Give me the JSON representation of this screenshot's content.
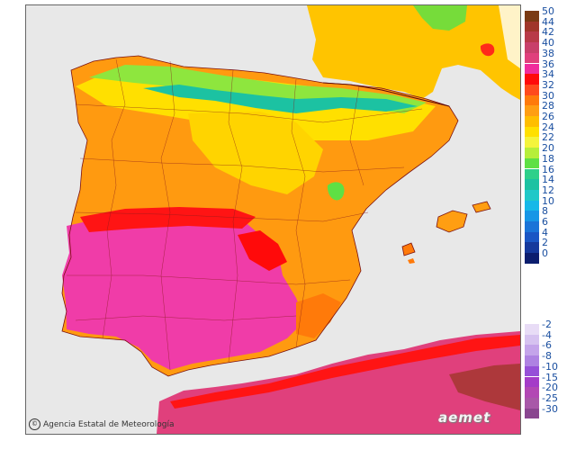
{
  "credit": {
    "icon": "copyright-icon",
    "text": "Agencia Estatal de Meteorología"
  },
  "brand": "aemet",
  "legend": {
    "positive": [
      {
        "label": "50",
        "color": "#7a3a14"
      },
      {
        "label": "44",
        "color": "#a0362a"
      },
      {
        "label": "42",
        "color": "#b83a48"
      },
      {
        "label": "40",
        "color": "#c8406a"
      },
      {
        "label": "38",
        "color": "#e0407c"
      },
      {
        "label": "36",
        "color": "#f02c9c"
      },
      {
        "label": "34",
        "color": "#ff0a0a"
      },
      {
        "label": "32",
        "color": "#ff4a1c"
      },
      {
        "label": "30",
        "color": "#ff7a0a"
      },
      {
        "label": "28",
        "color": "#ff9e12"
      },
      {
        "label": "26",
        "color": "#ffbe00"
      },
      {
        "label": "24",
        "color": "#ffe000"
      },
      {
        "label": "22",
        "color": "#f4f43c"
      },
      {
        "label": "20",
        "color": "#b6ee3a"
      },
      {
        "label": "18",
        "color": "#5ee044"
      },
      {
        "label": "16",
        "color": "#2ed08a"
      },
      {
        "label": "14",
        "color": "#1cc2a2"
      },
      {
        "label": "12",
        "color": "#20c8c8"
      },
      {
        "label": "10",
        "color": "#16b8e8"
      },
      {
        "label": "8",
        "color": "#1696e6"
      },
      {
        "label": "6",
        "color": "#1a74d8"
      },
      {
        "label": "4",
        "color": "#1a56c4"
      },
      {
        "label": "2",
        "color": "#15399c"
      },
      {
        "label": "0",
        "color": "#0c1e6e"
      }
    ],
    "negative": [
      {
        "label": "-2",
        "color": "#e8dcf6"
      },
      {
        "label": "-4",
        "color": "#d6c2f0"
      },
      {
        "label": "-6",
        "color": "#c4a4ea"
      },
      {
        "label": "-8",
        "color": "#ae82e2"
      },
      {
        "label": "-10",
        "color": "#9650d8"
      },
      {
        "label": "-15",
        "color": "#a43cc8"
      },
      {
        "label": "-20",
        "color": "#b248b4"
      },
      {
        "label": "-25",
        "color": "#a858a8"
      },
      {
        "label": "-30",
        "color": "#8a4690"
      }
    ]
  }
}
